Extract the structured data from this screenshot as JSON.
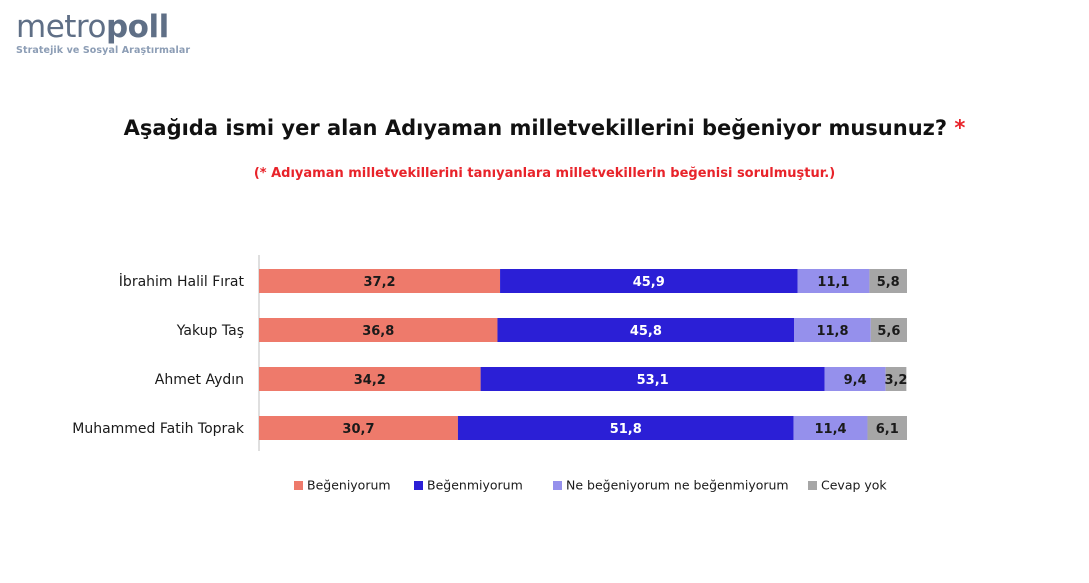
{
  "logo": {
    "word_light": "metro",
    "word_bold": "poll",
    "tagline": "Stratejik ve Sosyal Araştırmalar"
  },
  "header": {
    "title": "Aşağıda ismi yer alan Adıyaman milletvekillerini beğeniyor musunuz?",
    "title_star": "*",
    "subtitle": "(* Adıyaman milletvekillerini tanıyanlara milletvekillerin beğenisi sorulmuştur.)"
  },
  "colors": {
    "title_star": "#e8232a",
    "subtitle": "#e8232a",
    "logo": "#5f6f86"
  },
  "chart_data": {
    "type": "bar",
    "orientation": "horizontal",
    "stacked": true,
    "categories": [
      "İbrahim Halil Fırat",
      "Yakup Taş",
      "Ahmet Aydın",
      "Muhammed Fatih Toprak"
    ],
    "series": [
      {
        "name": "Beğeniyorum",
        "color": "#ee7a6b",
        "label_color": "#1a1a1a",
        "values": [
          37.2,
          36.8,
          34.2,
          30.7
        ]
      },
      {
        "name": "Beğenmiyorum",
        "color": "#2b1fd6",
        "label_color": "#ffffff",
        "values": [
          45.9,
          45.8,
          53.1,
          51.8
        ]
      },
      {
        "name": "Ne beğeniyorum ne beğenmiyorum",
        "color": "#9590ec",
        "label_color": "#1a1a1a",
        "values": [
          11.1,
          11.8,
          9.4,
          11.4
        ]
      },
      {
        "name": "Cevap yok",
        "color": "#a6a6a6",
        "label_color": "#1a1a1a",
        "values": [
          5.8,
          5.6,
          3.2,
          6.1
        ]
      }
    ],
    "xlim": [
      0,
      100
    ],
    "value_format": "comma-decimal",
    "grid": false,
    "legend": "bottom"
  }
}
